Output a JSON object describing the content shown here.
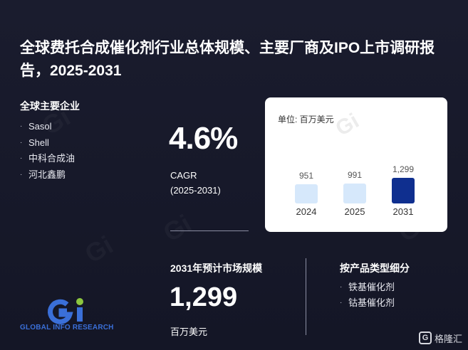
{
  "title": "全球费托合成催化剂行业总体规模、主要厂商及IPO上市调研报告，2025-2031",
  "companies": {
    "heading": "全球主要企业",
    "items": [
      "Sasol",
      "Shell",
      "中科合成油",
      "河北鑫鹏"
    ]
  },
  "cagr": {
    "value": "4.6%",
    "label": "CAGR",
    "period": "(2025-2031)"
  },
  "market": {
    "heading": "2031年预计市场规模",
    "value": "1,299",
    "unit": "百万美元"
  },
  "segments": {
    "heading": "按产品类型细分",
    "items": [
      "铁基催化剂",
      "钴基催化剂"
    ]
  },
  "logo": {
    "text": "GLOBAL INFO RESEARCH"
  },
  "badge": {
    "icon": "gelonghui-logo-icon",
    "text": "格隆汇"
  },
  "colors": {
    "background": "#16182a",
    "bar_light": "#d6e8fb",
    "bar_highlight": "#0f2f8f",
    "logo_blue": "#3a6fd8",
    "logo_green": "#8cc63f"
  },
  "chart_data": {
    "type": "bar",
    "unit_label": "单位: 百万美元",
    "categories": [
      "2024",
      "2025",
      "2031"
    ],
    "values": [
      951,
      991,
      1299
    ],
    "value_labels": [
      "951",
      "991",
      "1,299"
    ],
    "ylim": [
      0,
      1300
    ],
    "grid": false,
    "legend": "none"
  }
}
